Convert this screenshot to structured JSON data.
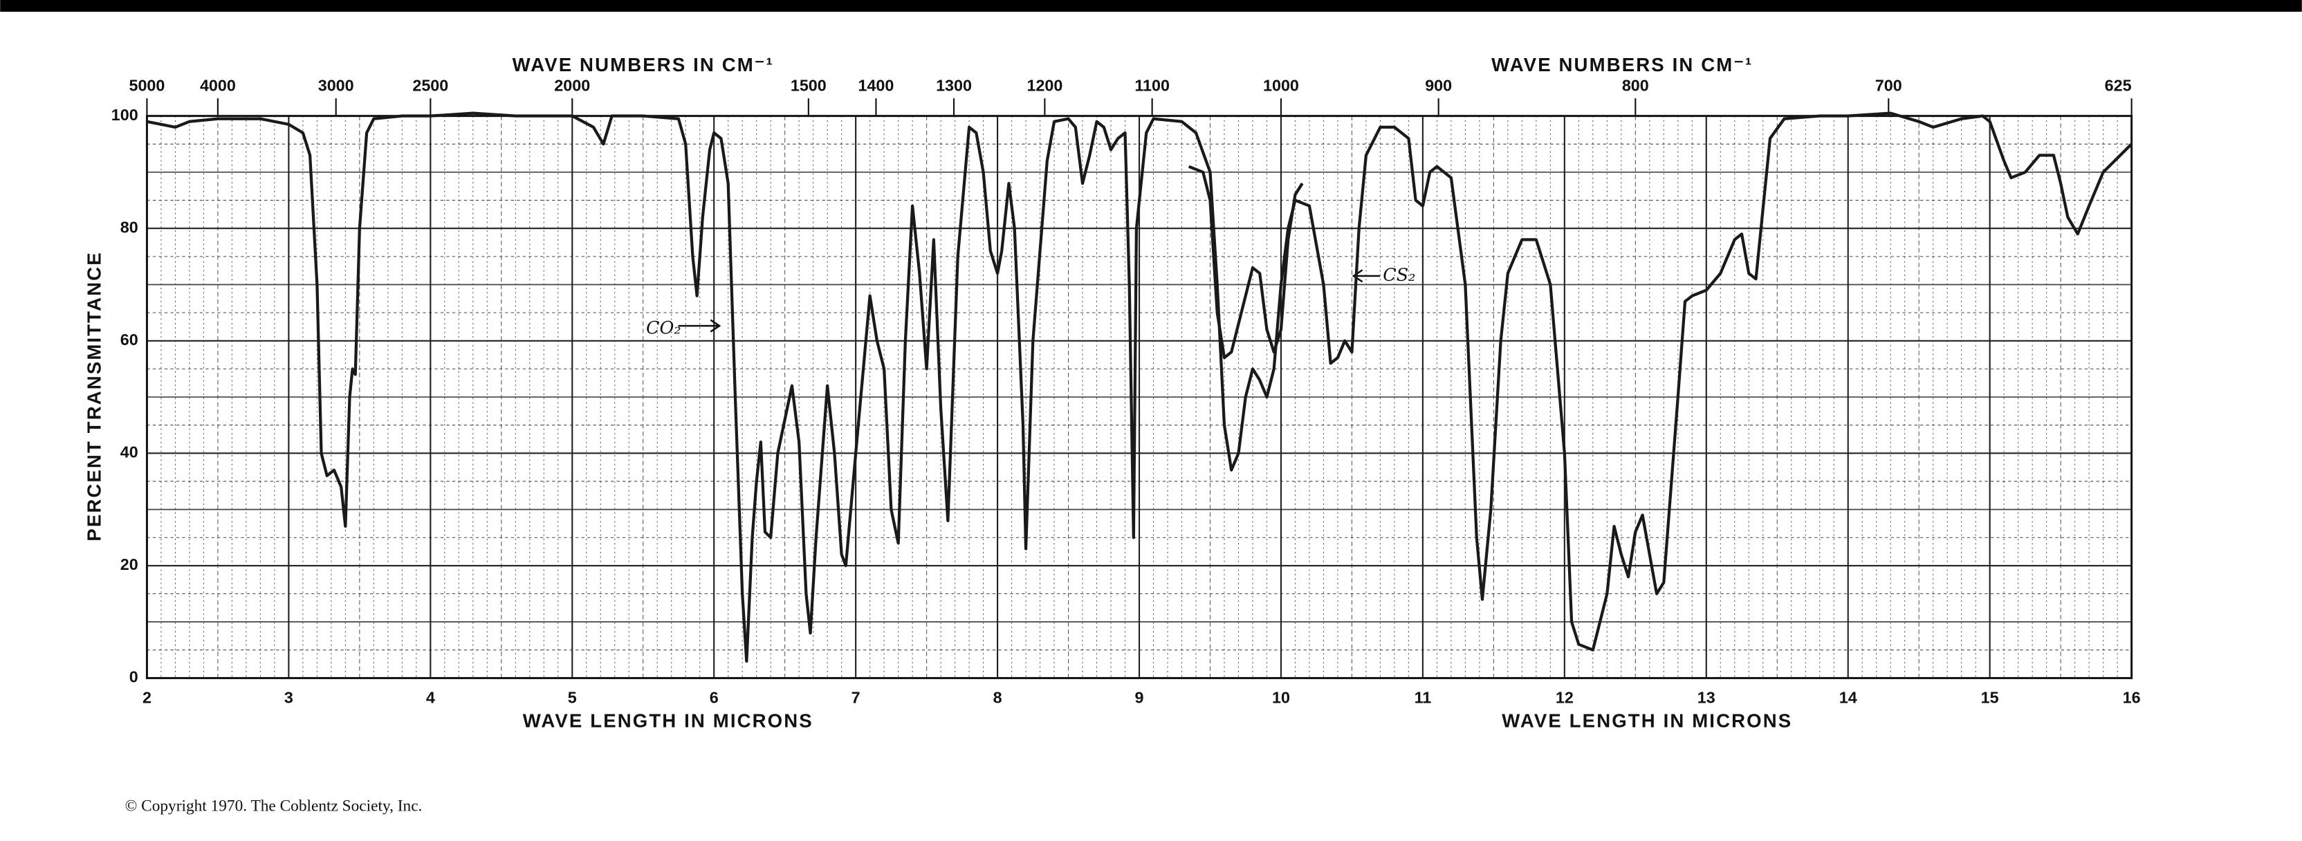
{
  "chart_data": {
    "type": "line",
    "xlabel": "WAVE LENGTH IN MICRONS",
    "x2label": "WAVE NUMBERS IN CM⁻¹",
    "ylabel": "PERCENT TRANSMITTANCE",
    "xlim": [
      2,
      16
    ],
    "xticks": [
      2,
      3,
      4,
      5,
      6,
      7,
      8,
      9,
      10,
      11,
      12,
      13,
      14,
      15,
      16
    ],
    "x2ticks": [
      5000,
      4000,
      3000,
      2500,
      2000,
      1500,
      1400,
      1300,
      1200,
      1100,
      1000,
      900,
      800,
      700,
      625
    ],
    "ylim": [
      0,
      100
    ],
    "yticks": [
      0,
      20,
      40,
      60,
      80,
      100
    ],
    "grid": true,
    "annotations": [
      "CO₂",
      "CS₂"
    ],
    "footer": "© Copyright 1970.  The Coblentz Society, Inc.",
    "series": [
      {
        "color": "#1a1a1a",
        "x": [
          2.0,
          2.1,
          2.2,
          2.3,
          2.5,
          2.8,
          3.0,
          3.1,
          3.15,
          3.2,
          3.23,
          3.27,
          3.32,
          3.37,
          3.4,
          3.43,
          3.45,
          3.47,
          3.5,
          3.55,
          3.6,
          3.8,
          4.0,
          4.3,
          4.6,
          5.0,
          5.15,
          5.22,
          5.28,
          5.5,
          5.75,
          5.8,
          5.85,
          5.88,
          5.92,
          5.97,
          6.0,
          6.05,
          6.1,
          6.15,
          6.2,
          6.23,
          6.27,
          6.3,
          6.33,
          6.36,
          6.4,
          6.45,
          6.55,
          6.6,
          6.65,
          6.68,
          6.72,
          6.8,
          6.85,
          6.9,
          6.93,
          7.0,
          7.1,
          7.15,
          7.2,
          7.25,
          7.3,
          7.35,
          7.4,
          7.45,
          7.5,
          7.55,
          7.6,
          7.65,
          7.72,
          7.8,
          7.85,
          7.9,
          7.95,
          8.0,
          8.03,
          8.08,
          8.12,
          8.18,
          8.2,
          8.25,
          8.35,
          8.4,
          8.5,
          8.55,
          8.6,
          8.65,
          8.7,
          8.75,
          8.8,
          8.85,
          8.9,
          8.93,
          8.96,
          8.98,
          9.05,
          9.1,
          9.3,
          9.4,
          9.5,
          9.55,
          9.6,
          9.65,
          9.7,
          9.75,
          9.8,
          9.85,
          9.9,
          9.95,
          10.0,
          10.05,
          10.1,
          10.2,
          10.3,
          10.35,
          10.4,
          10.45,
          10.5,
          10.55,
          10.6,
          10.7,
          10.8,
          10.9,
          10.95,
          11.0,
          11.05,
          11.1,
          11.2,
          11.3,
          11.38,
          11.42,
          11.48,
          11.55,
          11.6,
          11.7,
          11.8,
          11.9,
          12.0,
          12.05,
          12.1,
          12.2,
          12.3,
          12.35,
          12.4,
          12.45,
          12.5,
          12.55,
          12.6,
          12.65,
          12.7,
          12.8,
          12.85,
          12.9,
          13.0,
          13.1,
          13.2,
          13.25,
          13.3,
          13.35,
          13.45,
          13.55,
          13.8,
          14.0,
          14.3,
          14.5,
          14.6,
          14.8,
          14.95,
          15.0,
          15.1,
          15.15,
          15.25,
          15.35,
          15.45,
          15.5,
          15.55,
          15.62,
          15.7,
          15.8,
          16.0
        ],
        "values": [
          99,
          98.5,
          98,
          99,
          99.5,
          99.5,
          98.5,
          97,
          93,
          70,
          40,
          36,
          37,
          34,
          27,
          50,
          55,
          54,
          80,
          97,
          99.5,
          100,
          100,
          100.5,
          100,
          100,
          98,
          95,
          100,
          100,
          99.5,
          95,
          75,
          68,
          82,
          94,
          97,
          96,
          88,
          50,
          15,
          3,
          25,
          35,
          42,
          26,
          25,
          40,
          52,
          42,
          15,
          8,
          25,
          52,
          40,
          22,
          20,
          40,
          68,
          60,
          55,
          30,
          24,
          60,
          84,
          72,
          55,
          78,
          48,
          28,
          75,
          98,
          97,
          90,
          76,
          72,
          76,
          88,
          80,
          45,
          23,
          60,
          92,
          99,
          99.5,
          98,
          88,
          93,
          99,
          98,
          94,
          96,
          97,
          70,
          25,
          80,
          97,
          99.5,
          99,
          97,
          90,
          70,
          45,
          37,
          40,
          50,
          55,
          53,
          50,
          55,
          70,
          80,
          85,
          84,
          70,
          56,
          57,
          60,
          58,
          80,
          93,
          98,
          98,
          96,
          85,
          84,
          90,
          91,
          89,
          70,
          25,
          14,
          30,
          60,
          72,
          78,
          78,
          70,
          40,
          10,
          6,
          5,
          15,
          27,
          22,
          18,
          26,
          29,
          22,
          15,
          17,
          50,
          67,
          68,
          69,
          72,
          78,
          79,
          72,
          71,
          96,
          99.5,
          100,
          100,
          100.5,
          99,
          98,
          99.5,
          100,
          99,
          92,
          89,
          90,
          93,
          93,
          88,
          82,
          79,
          84,
          90,
          95
        ]
      },
      {
        "color": "#1a1a1a",
        "x": [
          9.35,
          9.45,
          9.5,
          9.55,
          9.6,
          9.65,
          9.7,
          9.8,
          9.85,
          9.9,
          9.95,
          10.0,
          10.05,
          10.1,
          10.15
        ],
        "values": [
          91,
          90,
          85,
          65,
          57,
          58,
          63,
          73,
          72,
          62,
          58,
          62,
          78,
          86,
          88
        ]
      }
    ]
  }
}
